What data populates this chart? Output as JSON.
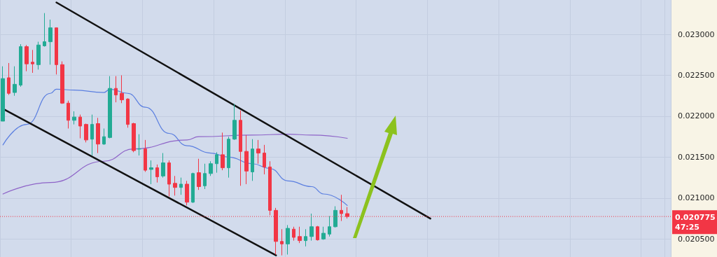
{
  "chart_data": {
    "type": "candlestick",
    "categories": [
      null,
      null,
      null,
      null,
      null,
      null,
      null,
      null,
      null,
      null,
      null,
      null,
      null,
      null,
      null,
      null,
      null,
      null,
      null,
      null,
      null,
      null,
      null,
      null,
      null,
      null,
      null,
      null,
      null,
      null,
      null,
      null,
      null,
      null,
      null,
      null,
      null,
      null,
      null,
      null,
      null,
      null,
      null,
      null,
      null,
      null,
      null,
      null,
      null,
      null,
      null,
      null,
      null,
      null,
      null,
      null,
      null,
      null,
      null,
      null,
      null,
      null,
      null,
      null,
      null,
      null,
      null,
      null,
      null,
      null,
      null,
      null,
      null,
      null,
      null,
      null,
      null,
      null,
      null,
      null,
      null,
      null,
      null,
      null,
      null,
      null,
      null,
      null,
      null,
      null,
      null,
      null,
      null,
      null,
      null,
      null,
      null,
      null,
      null,
      null,
      null,
      null,
      null,
      null,
      null,
      null,
      null,
      null,
      null,
      null,
      null,
      null,
      null
    ],
    "ohlc": [
      [
        0.02194,
        0.02261,
        0.02194,
        0.02246
      ],
      [
        0.02247,
        0.02265,
        0.02226,
        0.02228
      ],
      [
        0.02229,
        0.02261,
        0.02225,
        0.02239
      ],
      [
        0.02238,
        0.02288,
        0.02236,
        0.02285
      ],
      [
        0.02285,
        0.02287,
        0.02255,
        0.02264
      ],
      [
        0.02266,
        0.02281,
        0.02253,
        0.02264
      ],
      [
        0.02263,
        0.02291,
        0.02257,
        0.02287
      ],
      [
        0.02286,
        0.02326,
        0.02285,
        0.02291
      ],
      [
        0.02291,
        0.02318,
        0.02263,
        0.02308
      ],
      [
        0.02308,
        0.02308,
        0.02251,
        0.02263
      ],
      [
        0.02263,
        0.02267,
        0.02215,
        0.02216
      ],
      [
        0.02216,
        0.02219,
        0.02185,
        0.02195
      ],
      [
        0.02195,
        0.02206,
        0.0219,
        0.02199
      ],
      [
        0.02199,
        0.02202,
        0.02173,
        0.02188
      ],
      [
        0.0219,
        0.02191,
        0.02168,
        0.02171
      ],
      [
        0.02172,
        0.02202,
        0.02152,
        0.0219
      ],
      [
        0.02191,
        0.02198,
        0.02155,
        0.02166
      ],
      [
        0.02166,
        0.02185,
        0.02165,
        0.02175
      ],
      [
        0.02174,
        0.02249,
        0.02173,
        0.02234
      ],
      [
        0.02234,
        0.02249,
        0.02217,
        0.02226
      ],
      [
        0.02228,
        0.0225,
        0.02216,
        0.0222
      ],
      [
        0.02221,
        0.02222,
        0.02186,
        0.0219
      ],
      [
        0.02191,
        0.02192,
        0.02156,
        0.02158
      ],
      [
        0.0216,
        0.02178,
        0.02152,
        0.0216
      ],
      [
        0.0216,
        0.02171,
        0.02132,
        0.02134
      ],
      [
        0.02135,
        0.02146,
        0.02117,
        0.02137
      ],
      [
        0.02137,
        0.02141,
        0.02119,
        0.02126
      ],
      [
        0.02127,
        0.02155,
        0.02125,
        0.02143
      ],
      [
        0.02143,
        0.02146,
        0.02102,
        0.02117
      ],
      [
        0.02118,
        0.02127,
        0.02103,
        0.02113
      ],
      [
        0.02113,
        0.02125,
        0.02104,
        0.02117
      ],
      [
        0.02117,
        0.02121,
        0.02091,
        0.02095
      ],
      [
        0.02095,
        0.02131,
        0.02094,
        0.0213
      ],
      [
        0.02131,
        0.02148,
        0.0211,
        0.02114
      ],
      [
        0.02115,
        0.02142,
        0.02111,
        0.0213
      ],
      [
        0.0213,
        0.02145,
        0.02127,
        0.02142
      ],
      [
        0.02142,
        0.02156,
        0.02131,
        0.02153
      ],
      [
        0.02153,
        0.0218,
        0.02134,
        0.02137
      ],
      [
        0.02137,
        0.02175,
        0.02125,
        0.02172
      ],
      [
        0.02172,
        0.02215,
        0.02171,
        0.02195
      ],
      [
        0.02195,
        0.02207,
        0.02115,
        0.02157
      ],
      [
        0.02157,
        0.02177,
        0.02117,
        0.02133
      ],
      [
        0.02132,
        0.02172,
        0.02121,
        0.0216
      ],
      [
        0.0216,
        0.02171,
        0.02142,
        0.02155
      ],
      [
        0.02155,
        0.02165,
        0.02129,
        0.02138
      ],
      [
        0.02138,
        0.02145,
        0.02079,
        0.02085
      ],
      [
        0.02085,
        0.02088,
        0.02031,
        0.02047
      ],
      [
        0.02047,
        0.02062,
        0.0203,
        0.02044
      ],
      [
        0.02044,
        0.02067,
        0.02031,
        0.02063
      ],
      [
        0.02062,
        0.02065,
        0.02048,
        0.02052
      ],
      [
        0.02053,
        0.02065,
        0.02045,
        0.02048
      ],
      [
        0.02048,
        0.02062,
        0.02041,
        0.02053
      ],
      [
        0.02053,
        0.02081,
        0.02048,
        0.02065
      ],
      [
        0.02065,
        0.02066,
        0.02048,
        0.02049
      ],
      [
        0.0205,
        0.02065,
        0.02049,
        0.02057
      ],
      [
        0.02056,
        0.02078,
        0.02053,
        0.02065
      ],
      [
        0.02065,
        0.0209,
        0.02064,
        0.02085
      ],
      [
        0.02085,
        0.02104,
        0.02072,
        0.02081
      ],
      [
        0.02081,
        0.02089,
        0.02075,
        0.020775
      ],
      null,
      null,
      null,
      null,
      null,
      null,
      null,
      null,
      null,
      null,
      null,
      null,
      null,
      null,
      null,
      null,
      null,
      null,
      null,
      null,
      null,
      null,
      null,
      null,
      null,
      null,
      null,
      null,
      null,
      null,
      null,
      null,
      null,
      null,
      null,
      null,
      null,
      null,
      null,
      null,
      null,
      null,
      null,
      null,
      null,
      null,
      null,
      null,
      null,
      null,
      null,
      null,
      null,
      null
    ],
    "colors": [
      "#22ab94",
      "#f23645",
      "#22ab94",
      "#22ab94",
      "#f23645",
      "#f23645",
      "#22ab94",
      "#22ab94",
      "#22ab94",
      "#f23645",
      "#f23645",
      "#f23645",
      "#22ab94",
      "#f23645",
      "#f23645",
      "#22ab94",
      "#f23645",
      "#22ab94",
      "#22ab94",
      "#f23645",
      "#f23645",
      "#f23645",
      "#f23645",
      "#22ab94",
      "#f23645",
      "#22ab94",
      "#f23645",
      "#22ab94",
      "#f23645",
      "#f23645",
      "#22ab94",
      "#f23645",
      "#22ab94",
      "#f23645",
      "#22ab94",
      "#22ab94",
      "#22ab94",
      "#f23645",
      "#22ab94",
      "#22ab94",
      "#f23645",
      "#f23645",
      "#22ab94",
      "#f23645",
      "#f23645",
      "#f23645",
      "#f23645",
      "#f23645",
      "#22ab94",
      "#f23645",
      "#f23645",
      "#22ab94",
      "#22ab94",
      "#f23645",
      "#22ab94",
      "#22ab94",
      "#22ab94",
      "#f23645",
      "#f23645",
      null,
      null,
      null,
      null,
      null,
      null,
      null,
      null,
      null,
      null,
      null,
      null,
      null,
      null,
      null,
      null,
      null,
      null,
      null,
      null,
      null,
      null,
      null,
      null,
      null,
      null,
      null,
      null,
      null,
      null,
      null,
      null,
      null,
      null,
      null,
      null,
      null,
      null,
      null,
      null,
      null,
      null,
      null,
      null,
      null,
      null,
      null,
      null,
      null,
      null,
      null,
      null,
      null,
      null
    ],
    "series": [
      {
        "type": "line",
        "color": "#5b7fe0",
        "values": [
          0.02165,
          null,
          null,
          null,
          0.0219,
          null,
          null,
          null,
          0.02228,
          0.02233,
          null,
          null,
          0.02232,
          null,
          null,
          null,
          null,
          0.02229,
          0.02233,
          null,
          null,
          0.02228,
          null,
          null,
          0.02211,
          null,
          null,
          null,
          0.02179,
          null,
          null,
          0.02164,
          null,
          null,
          null,
          0.02155,
          null,
          null,
          0.0215,
          null,
          null,
          null,
          0.02142,
          null,
          null,
          0.02136,
          null,
          null,
          0.02121,
          null,
          null,
          null,
          0.02114,
          null,
          0.02105,
          null,
          null,
          null,
          0.02091,
          null,
          null,
          null,
          null,
          null,
          null,
          null,
          null,
          null,
          null,
          null,
          null,
          null,
          null,
          null,
          null,
          null,
          null,
          null,
          null,
          null,
          null,
          null,
          null,
          null,
          null,
          null,
          null,
          null,
          null,
          null,
          null,
          null,
          null,
          null,
          null,
          null,
          null,
          null,
          null,
          null,
          null,
          null,
          null,
          null,
          null,
          null,
          null,
          null,
          null,
          null,
          null,
          null,
          null
        ]
      },
      {
        "type": "line",
        "color": "#8e64c8",
        "values": [
          0.02105,
          null,
          null,
          null,
          null,
          null,
          null,
          null,
          0.02119,
          null,
          null,
          null,
          null,
          null,
          null,
          null,
          null,
          0.02145,
          null,
          null,
          null,
          null,
          0.0216,
          null,
          null,
          null,
          null,
          null,
          null,
          null,
          null,
          0.02171,
          null,
          0.02175,
          null,
          null,
          null,
          null,
          null,
          null,
          null,
          null,
          0.02177,
          null,
          null,
          null,
          null,
          null,
          0.02178,
          null,
          null,
          null,
          0.02177,
          null,
          null,
          null,
          null,
          null,
          0.02173,
          null,
          null,
          null,
          null,
          null,
          null,
          null,
          null,
          null,
          null,
          null,
          null,
          null,
          null,
          null,
          null,
          null,
          null,
          null,
          null,
          null,
          null,
          null,
          null,
          null,
          null,
          null,
          null,
          null,
          null,
          null,
          null,
          null,
          null,
          null,
          null,
          null,
          null,
          null,
          null,
          null,
          null,
          null,
          null,
          null,
          null,
          null,
          null,
          null,
          null,
          null,
          null,
          null,
          null
        ]
      },
      {
        "type": "line",
        "color": "#111111",
        "values": [
          null,
          null,
          null,
          null,
          null,
          null,
          null,
          null,
          null,
          0.02339,
          null,
          null,
          null,
          null,
          null,
          null,
          null,
          null,
          null,
          null,
          null,
          null,
          null,
          null,
          null,
          null,
          null,
          null,
          null,
          null,
          null,
          null,
          null,
          null,
          null,
          null,
          null,
          null,
          null,
          null,
          null,
          null,
          null,
          null,
          null,
          null,
          null,
          null,
          null,
          null,
          null,
          null,
          null,
          null,
          null,
          null,
          null,
          null,
          null,
          null,
          null,
          null,
          null,
          null,
          null,
          null,
          null,
          null,
          null,
          null,
          null,
          null,
          0.02075,
          null,
          null,
          null,
          null,
          null,
          null,
          null,
          null,
          null,
          null,
          null,
          null,
          null,
          null,
          null,
          null,
          null,
          null,
          null,
          null,
          null,
          null,
          null,
          null,
          null,
          null,
          null,
          null,
          null,
          null,
          null,
          null,
          null,
          null,
          null,
          null,
          null,
          null,
          null,
          null
        ]
      },
      {
        "type": "line",
        "color": "#111111",
        "values": [
          0.02209,
          null,
          null,
          null,
          null,
          null,
          null,
          null,
          null,
          null,
          null,
          null,
          null,
          null,
          null,
          null,
          null,
          null,
          null,
          null,
          null,
          null,
          null,
          null,
          null,
          null,
          null,
          null,
          null,
          null,
          null,
          null,
          null,
          null,
          null,
          null,
          null,
          null,
          null,
          null,
          null,
          null,
          null,
          null,
          null,
          null,
          0.0203,
          null,
          null,
          null,
          null,
          null,
          null,
          null,
          null,
          null,
          null,
          null,
          null,
          null,
          null,
          null,
          null,
          null,
          null,
          null,
          null,
          null,
          null,
          null,
          null,
          null,
          null,
          null,
          null,
          null,
          null,
          null,
          null,
          null,
          null,
          null,
          null,
          null,
          null,
          null,
          null,
          null,
          null,
          null,
          null,
          null,
          null,
          null,
          null,
          null,
          null,
          null,
          null,
          null,
          null,
          null,
          null,
          null,
          null,
          null,
          null,
          null,
          null,
          null,
          null,
          null,
          null
        ]
      }
    ],
    "ylim": [
      0.02028,
      0.02342
    ],
    "yticks": [
      {
        "value": 0.0205,
        "label": "0.020500"
      },
      {
        "value": 0.021,
        "label": "0.021000"
      },
      {
        "value": 0.0215,
        "label": "0.021500"
      },
      {
        "value": 0.022,
        "label": "0.022000"
      },
      {
        "value": 0.0225,
        "label": "0.022500"
      },
      {
        "value": 0.023,
        "label": "0.023000"
      }
    ],
    "ref_lines": [
      {
        "axis": "y",
        "value": 0.020775,
        "label": "0.020775",
        "color": "#f23645",
        "line_style": "dotted"
      }
    ],
    "annotations": [
      "47:25"
    ],
    "tick_labels": "y",
    "grid": true,
    "marker": "none"
  }
}
